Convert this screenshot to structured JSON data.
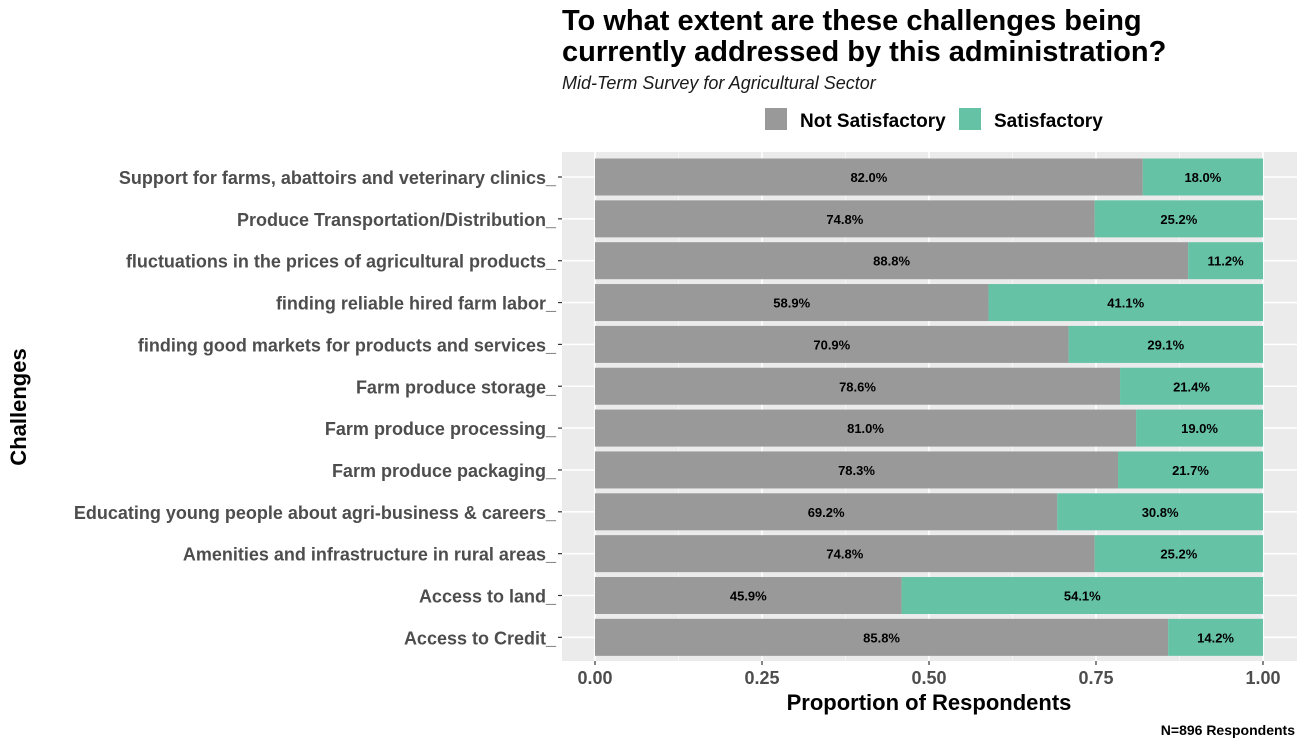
{
  "chart_data": {
    "type": "bar",
    "orientation": "horizontal",
    "stacked": true,
    "title_lines": [
      "To what extent are these challenges being",
      "currently addressed by this administration?"
    ],
    "subtitle": "Mid-Term Survey for Agricultural Sector",
    "xlabel": "Proportion of Respondents",
    "ylabel": "Challenges",
    "caption": "N=896 Respondents",
    "xlim": [
      0,
      1
    ],
    "xticks": [
      "0.00",
      "0.25",
      "0.50",
      "0.75",
      "1.00"
    ],
    "xtick_values": [
      0,
      0.25,
      0.5,
      0.75,
      1
    ],
    "grid": true,
    "legend_position": "top",
    "categories": [
      "Support for farms, abattoirs and veterinary clinics_",
      "Produce Transportation/Distribution_",
      "fluctuations in the prices of agricultural products_",
      "finding reliable hired farm labor_",
      "finding good markets for products and services_",
      "Farm produce storage_",
      "Farm produce processing_",
      "Farm produce packaging_",
      "Educating young people about agri-business & careers_",
      "Amenities and infrastructure in rural areas_",
      "Access to land_",
      "Access to Credit_"
    ],
    "series": [
      {
        "name": "Not Satisfactory",
        "color": "#999999",
        "values": [
          0.82,
          0.748,
          0.888,
          0.589,
          0.709,
          0.786,
          0.81,
          0.783,
          0.692,
          0.748,
          0.459,
          0.858
        ],
        "labels": [
          "82.0%",
          "74.8%",
          "88.8%",
          "58.9%",
          "70.9%",
          "78.6%",
          "81.0%",
          "78.3%",
          "69.2%",
          "74.8%",
          "45.9%",
          "85.8%"
        ]
      },
      {
        "name": "Satisfactory",
        "color": "#66C2A5",
        "values": [
          0.18,
          0.252,
          0.112,
          0.411,
          0.291,
          0.214,
          0.19,
          0.217,
          0.308,
          0.252,
          0.541,
          0.142
        ],
        "labels": [
          "18.0%",
          "25.2%",
          "11.2%",
          "41.1%",
          "29.1%",
          "21.4%",
          "19.0%",
          "21.7%",
          "30.8%",
          "25.2%",
          "54.1%",
          "14.2%"
        ]
      }
    ]
  }
}
